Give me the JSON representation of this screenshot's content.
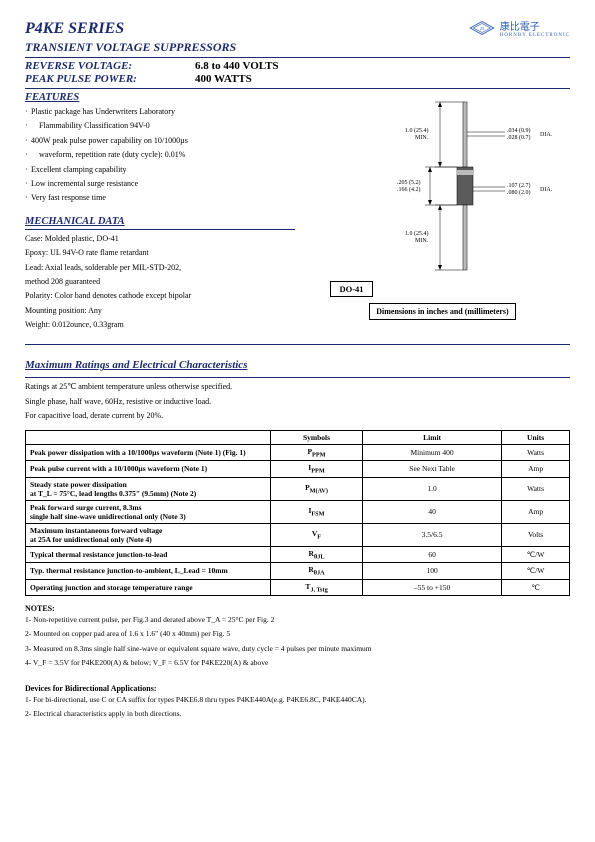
{
  "header": {
    "series": "P4KE SERIES",
    "subtitle": "TRANSIENT VOLTAGE SUPPRESSORS",
    "reverse_label": "REVERSE VOLTAGE:",
    "reverse_val": "6.8 to 440 VOLTS",
    "power_label": "PEAK PULSE POWER:",
    "power_val": "400 WATTS"
  },
  "logo": {
    "chars": "康比電子",
    "sub": "HORNBY ELECTRONIC",
    "diamond_stroke": "#2b5fb5"
  },
  "features": {
    "head": "FEATURES",
    "items": [
      "Plastic package has Underwriters Laboratory",
      "  Flammability Classification 94V-0",
      "400W peak pulse power capability on 10/1000µs",
      "  waveform, repetition rate (duty cycle): 0.01%",
      "Excellent clamping capability",
      "Low incremental surge resistance",
      "Very fast response time"
    ]
  },
  "mech": {
    "head": "MECHANICAL DATA",
    "lines": [
      "Case: Molded plastic, DO-41",
      "Epoxy: UL 94V-O rate flame retardant",
      "Lead: Axial leads, solderable per MIL-STD-202,",
      "method 208 guaranteed",
      "Polarity: Color band denotes cathode except bipolar",
      "Mounting position: Any",
      "Weight: 0.012ounce, 0.33gram"
    ]
  },
  "package": {
    "label": "DO-41",
    "caption": "Dimensions in inches and (millimeters)",
    "dims": {
      "lead_dia": ".034 (0.9)\n.028 (0.7)",
      "lead_len": "1.0 (25.4)\nMIN.",
      "body_len": ".205 (5.2)\n.166 (4.2)",
      "body_dia": ".107 (2.7)\n.080 (2.0)",
      "lead_len2": "1.0 (25.4)\nMIN.",
      "dia_suffix": "DIA."
    },
    "colors": {
      "body_fill": "#5a5a5a",
      "band_fill": "#bbbbbb",
      "lead_fill": "#bbbbbb",
      "line": "#000000"
    }
  },
  "maxratings": {
    "head": "Maximum Ratings and Electrical Characteristics",
    "intro": [
      "Ratings at 25℃ ambient temperature unless otherwise specified.",
      "Single phase, half wave, 60Hz, resistive or inductive load.",
      "For capacitive load, derate current by 20%."
    ],
    "cols": [
      "",
      "Symbols",
      "Limit",
      "Units"
    ],
    "rows": [
      [
        "Peak power dissipation with a 10/1000µs waveform (Note 1) (Fig. 1)",
        "P_PPM",
        "Minimum 400",
        "Watts"
      ],
      [
        "Peak pulse current with a 10/1000µs waveform (Note 1)",
        "I_PPM",
        "See Next Table",
        "Amp"
      ],
      [
        "Steady state power dissipation\nat T_L = 75°C, lead lengths 0.375\" (9.5mm) (Note 2)",
        "P_M(AV)",
        "1.0",
        "Watts"
      ],
      [
        "Peak forward surge current, 8.3ms\nsingle half sine-wave unidirectional only (Note 3)",
        "I_FSM",
        "40",
        "Amp"
      ],
      [
        "Maximum instantaneous forward voltage\nat 25A for unidirectional only (Note 4)",
        "V_F",
        "3.5/6.5",
        "Volts"
      ],
      [
        "Typical thermal resistance junction-to-lead",
        "R_θJL",
        "60",
        "℃/W"
      ],
      [
        "Typ. thermal resistance junction-to-ambient, L_Lead = 10mm",
        "R_θJA",
        "100",
        "℃/W"
      ],
      [
        "Operating junction and storage temperature range",
        "T_J, Tstg",
        "–55 to +150",
        "℃"
      ]
    ]
  },
  "notes": {
    "head": "NOTES:",
    "items": [
      "1- Non-repetitive current pulse, per Fig.3 and derated above T_A = 25°C per Fig. 2",
      "2- Mounted on copper pad area of 1.6 x 1.6\" (40 x 40mm) per Fig. 5",
      "3- Measured on 8.3ms single half sine-wave or equivalent square wave, duty cycle = 4 pulses per minute maximum",
      "4- V_F = 3.5V for P4KE200(A) & below; V_F = 6.5V for P4KE220(A) & above"
    ]
  },
  "bidir": {
    "head": "Devices for Bidirectional Applications:",
    "items": [
      "1- For bi-directional, use C or CA suffix for types P4KE6.8 thru types P4KE440A(e.g. P4KE6.8C, P4KE440CA).",
      "2- Electrical characteristics apply in both directions."
    ]
  },
  "style": {
    "accent": "#1a2a6c",
    "text": "#000000",
    "bg": "#ffffff",
    "table_border": "#000000",
    "font_body_pt": 8,
    "font_title_pt": 16
  }
}
